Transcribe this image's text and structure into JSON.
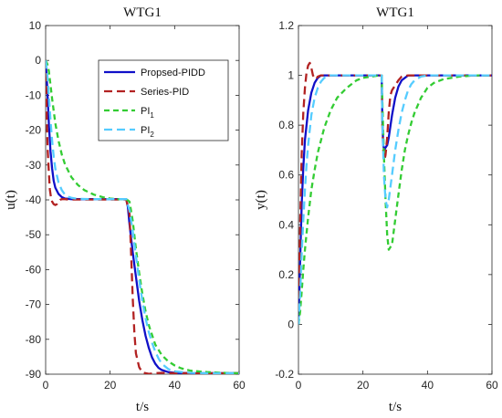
{
  "chart_data": [
    {
      "type": "line",
      "title": "WTG1",
      "xlabel": "t/s",
      "ylabel": "u(t)",
      "xlim": [
        0,
        60
      ],
      "ylim": [
        -90,
        10
      ],
      "xticks": [
        "0",
        "20",
        "40",
        "60"
      ],
      "yticks": [
        "10",
        "0",
        "-10",
        "-20",
        "-30",
        "-40",
        "-50",
        "-60",
        "-70",
        "-80",
        "-90"
      ],
      "grid": false,
      "legend": {
        "placement": "top-right",
        "entries": [
          {
            "text": "Propsed-PIDD",
            "sub": ""
          },
          {
            "text": "Series-PID",
            "sub": ""
          },
          {
            "text": "PI",
            "sub": "1"
          },
          {
            "text": "PI",
            "sub": "2"
          }
        ]
      },
      "series": [
        {
          "color": "#1010c8",
          "dash": "solid",
          "x": [
            0,
            0.5,
            1,
            1.5,
            2,
            2.5,
            3,
            4,
            5,
            6,
            8,
            10,
            15,
            20,
            24,
            25,
            25.5,
            26,
            27,
            28,
            29,
            30,
            31,
            32,
            33,
            34,
            35,
            36,
            38,
            40,
            45,
            50,
            60
          ],
          "y": [
            0,
            -8,
            -18,
            -26,
            -31,
            -34.5,
            -36.5,
            -38.3,
            -39.2,
            -39.6,
            -39.8,
            -39.8,
            -39.8,
            -39.8,
            -39.8,
            -39.8,
            -42,
            -47,
            -55,
            -62,
            -69,
            -74.5,
            -79,
            -82.5,
            -85.2,
            -87,
            -88.2,
            -88.8,
            -89.4,
            -89.6,
            -89.7,
            -89.7,
            -89.7
          ]
        },
        {
          "color": "#b22222",
          "dash": "long",
          "x": [
            0,
            0.3,
            0.6,
            1,
            1.3,
            1.6,
            2,
            2.5,
            3,
            3.5,
            4,
            4.5,
            5,
            6,
            7,
            8,
            10,
            15,
            20,
            25,
            26,
            26.5,
            27,
            27.5,
            28,
            29,
            30,
            32,
            34,
            36,
            40,
            50,
            60
          ],
          "y": [
            0,
            -14,
            -25,
            -32,
            -37,
            -39,
            -40.5,
            -41.2,
            -41.5,
            -41.2,
            -40.5,
            -40,
            -39.8,
            -39.8,
            -39.9,
            -39.9,
            -39.9,
            -39.9,
            -39.9,
            -39.9,
            -44,
            -55,
            -68,
            -78,
            -84,
            -88,
            -89.5,
            -89.9,
            -89.7,
            -89.6,
            -89.7,
            -89.7,
            -89.7
          ]
        },
        {
          "color": "#33cc33",
          "dash": "medium",
          "x": [
            0,
            0.5,
            1,
            1.5,
            2,
            3,
            4,
            5,
            6,
            8,
            10,
            12,
            15,
            18,
            20,
            22,
            24,
            25,
            26,
            27,
            28,
            29,
            30,
            31,
            32,
            34,
            36,
            38,
            40,
            42,
            45,
            50,
            55,
            60
          ],
          "y": [
            0,
            -1,
            -3,
            -7,
            -11,
            -18,
            -23,
            -27,
            -29.8,
            -33.5,
            -35.7,
            -37.2,
            -38.5,
            -39.3,
            -39.6,
            -39.8,
            -39.8,
            -39.8,
            -40.5,
            -46,
            -54,
            -61,
            -67,
            -72,
            -76,
            -81.5,
            -84.5,
            -86.3,
            -87.5,
            -88.3,
            -89,
            -89.4,
            -89.6,
            -89.7
          ]
        },
        {
          "color": "#55ccff",
          "dash": "long",
          "x": [
            0,
            0.5,
            1,
            1.5,
            2,
            2.5,
            3,
            4,
            5,
            6,
            7,
            8,
            10,
            15,
            20,
            25,
            26,
            27,
            28,
            29,
            30,
            31,
            32,
            33,
            34,
            35,
            36,
            38,
            40,
            45,
            50,
            60
          ],
          "y": [
            0,
            -4,
            -10,
            -17,
            -23,
            -27.5,
            -31,
            -35,
            -37.2,
            -38.5,
            -39.1,
            -39.4,
            -39.7,
            -39.8,
            -39.8,
            -39.8,
            -43,
            -49,
            -56,
            -63,
            -69,
            -74,
            -78,
            -81,
            -83.5,
            -85.5,
            -87,
            -88.5,
            -89.2,
            -89.6,
            -89.7,
            -89.7
          ]
        }
      ]
    },
    {
      "type": "line",
      "title": "WTG1",
      "xlabel": "t/s",
      "ylabel": "y(t)",
      "xlim": [
        0,
        60
      ],
      "ylim": [
        -0.2,
        1.2
      ],
      "xticks": [
        "0",
        "20",
        "40",
        "60"
      ],
      "yticks": [
        "1.2",
        "1",
        "0.8",
        "0.6",
        "0.4",
        "0.2",
        "0",
        "-0.2"
      ],
      "grid": false,
      "series": [
        {
          "color": "#1010c8",
          "dash": "solid",
          "x": [
            0,
            0.5,
            1,
            1.5,
            2,
            3,
            4,
            5,
            6,
            7,
            8,
            10,
            15,
            20,
            25,
            25.8,
            26,
            26.3,
            26.6,
            27,
            27.5,
            28,
            29,
            30,
            31,
            32,
            33,
            34,
            35,
            36,
            38,
            40,
            60
          ],
          "y": [
            0,
            0.25,
            0.48,
            0.63,
            0.74,
            0.86,
            0.93,
            0.97,
            0.99,
            1.0,
            1.0,
            1.0,
            1.0,
            1.0,
            1.0,
            1.0,
            0.82,
            0.72,
            0.7,
            0.71,
            0.72,
            0.75,
            0.84,
            0.91,
            0.955,
            0.98,
            0.99,
            1.0,
            1.0,
            1.0,
            1.0,
            1.0,
            1.0
          ]
        },
        {
          "color": "#b22222",
          "dash": "long",
          "x": [
            0,
            0.5,
            1,
            1.5,
            2,
            2.5,
            3,
            3.5,
            4,
            4.5,
            5,
            5.5,
            6,
            7,
            8,
            10,
            15,
            20,
            25,
            25.8,
            26,
            26.3,
            26.7,
            27,
            27.5,
            28,
            28.5,
            29,
            29.5,
            30,
            31,
            32,
            34,
            40,
            60
          ],
          "y": [
            0,
            0.4,
            0.68,
            0.85,
            0.95,
            1.01,
            1.04,
            1.05,
            1.03,
            1.0,
            0.99,
            0.985,
            0.995,
            1.0,
            1.0,
            1.0,
            1.0,
            1.0,
            1.0,
            1.0,
            0.8,
            0.7,
            0.66,
            0.68,
            0.75,
            0.85,
            0.92,
            0.94,
            0.95,
            0.96,
            0.98,
            0.995,
            1.0,
            1.0,
            1.0
          ]
        },
        {
          "color": "#33cc33",
          "dash": "medium",
          "x": [
            0,
            0.5,
            1,
            1.5,
            2,
            3,
            4,
            5,
            6,
            8,
            10,
            12,
            15,
            18,
            20,
            25,
            25.8,
            26,
            26.5,
            27,
            27.5,
            28,
            29,
            30,
            31,
            32,
            33,
            34,
            35,
            36,
            38,
            40,
            42,
            45,
            50,
            55,
            60
          ],
          "y": [
            0,
            0.05,
            0.13,
            0.22,
            0.3,
            0.43,
            0.54,
            0.62,
            0.69,
            0.79,
            0.86,
            0.91,
            0.95,
            0.98,
            0.99,
            1.0,
            1.0,
            0.9,
            0.68,
            0.5,
            0.36,
            0.3,
            0.32,
            0.42,
            0.52,
            0.62,
            0.7,
            0.76,
            0.81,
            0.85,
            0.91,
            0.95,
            0.97,
            0.985,
            0.995,
            1.0,
            1.0
          ]
        },
        {
          "color": "#55ccff",
          "dash": "long",
          "x": [
            0,
            0.5,
            1,
            1.5,
            2,
            2.5,
            3,
            4,
            5,
            6,
            7,
            8,
            10,
            15,
            20,
            25,
            25.8,
            26,
            26.5,
            27,
            27.5,
            28,
            29,
            30,
            31,
            32,
            33,
            34,
            35,
            36,
            38,
            40,
            45,
            60
          ],
          "y": [
            0,
            0.12,
            0.28,
            0.42,
            0.54,
            0.64,
            0.72,
            0.84,
            0.91,
            0.95,
            0.975,
            0.99,
            1.0,
            1.0,
            1.0,
            1.0,
            1.0,
            0.82,
            0.6,
            0.5,
            0.47,
            0.5,
            0.6,
            0.7,
            0.78,
            0.85,
            0.9,
            0.94,
            0.965,
            0.98,
            0.995,
            1.0,
            1.0,
            1.0
          ]
        }
      ]
    }
  ]
}
